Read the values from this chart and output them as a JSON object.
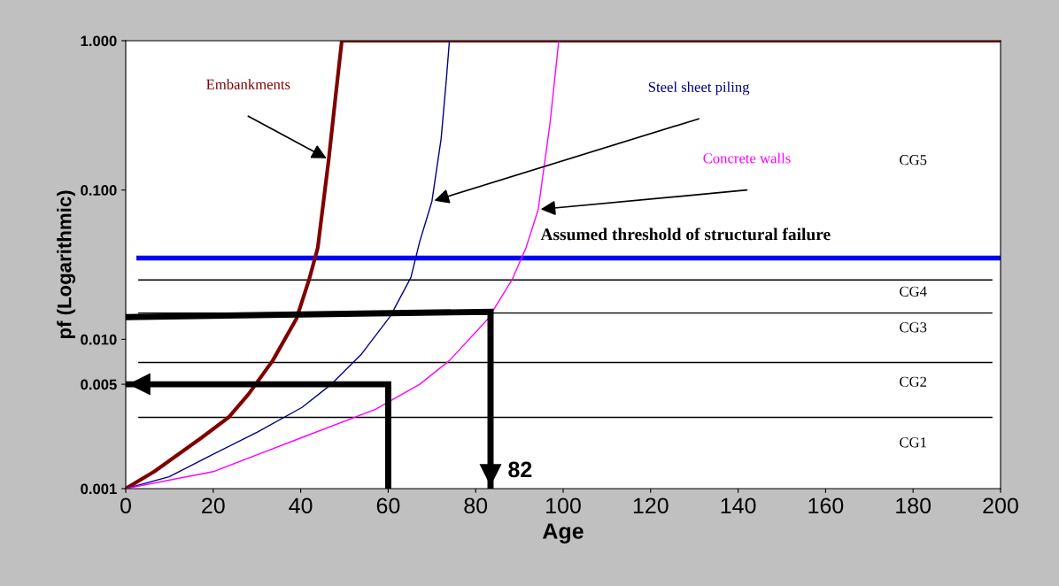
{
  "chart_data": {
    "type": "line",
    "xlabel": "Age",
    "ylabel": "pf (Logarithmic)",
    "log": "y",
    "xlim": [
      0,
      200
    ],
    "xticks": [
      0,
      20,
      40,
      60,
      80,
      100,
      120,
      140,
      160,
      180,
      200
    ],
    "ylim": [
      0.001,
      1.0
    ],
    "yticks": [
      {
        "value": 0.001,
        "label": "0.001"
      },
      {
        "value": 0.005,
        "label": "0.005"
      },
      {
        "value": 0.01,
        "label": "0.010"
      },
      {
        "value": 0.1,
        "label": "0.100"
      },
      {
        "value": 1.0,
        "label": "1.000"
      }
    ],
    "grid": false,
    "legend": false,
    "marker": "none",
    "line_style": "solid",
    "series": [
      {
        "name": "Embankments",
        "color": "#800000",
        "x": [
          0,
          6.5,
          17.4,
          23.5,
          28.1,
          33.6,
          39,
          41.9,
          43.9,
          46.4,
          48,
          49.4,
          200
        ],
        "values": [
          0.001,
          0.0013,
          0.0022,
          0.003,
          0.0043,
          0.0072,
          0.0137,
          0.025,
          0.041,
          0.16,
          0.43,
          1.0,
          1.0
        ]
      },
      {
        "name": "Steel sheet piling",
        "color": "#000080",
        "x": [
          0,
          9.9,
          20,
          30.2,
          40.3,
          47,
          53.8,
          60.5,
          65.2,
          67.2,
          70,
          72.1,
          73.3,
          74
        ],
        "values": [
          0.001,
          0.0012,
          0.0017,
          0.0024,
          0.0035,
          0.005,
          0.0079,
          0.0143,
          0.026,
          0.045,
          0.084,
          0.22,
          0.55,
          1.0
        ]
      },
      {
        "name": "Concrete walls",
        "color": "#ff00ff",
        "x": [
          0,
          20,
          40.3,
          57.1,
          67.2,
          74,
          82.8,
          88.3,
          91.5,
          94.3,
          97,
          99
        ],
        "values": [
          0.001,
          0.0013,
          0.0022,
          0.0034,
          0.005,
          0.0072,
          0.0137,
          0.025,
          0.041,
          0.074,
          0.28,
          1.0
        ]
      },
      {
        "color": "#000000",
        "x": [
          60,
          60,
          0
        ],
        "values": [
          0.001,
          0.005,
          0.005
        ]
      },
      {
        "color": "#000000",
        "x": [
          0,
          83.4,
          83.4
        ],
        "values": [
          0.0141,
          0.0153,
          0.001
        ]
      }
    ],
    "ref_lines": [
      {
        "axis": "y",
        "value": 0.035,
        "label": "Assumed threshold of structural failure",
        "color": "#0000ff"
      },
      {
        "axis": "y",
        "value": 0.025,
        "color": "#000000"
      },
      {
        "axis": "y",
        "value": 0.015,
        "color": "#000000"
      },
      {
        "axis": "y",
        "value": 0.007,
        "color": "#000000"
      },
      {
        "axis": "y",
        "value": 0.003,
        "color": "#000000"
      }
    ],
    "annotations": [
      "CG5",
      "CG4",
      "CG3",
      "CG2",
      "CG1",
      {
        "text": "82",
        "x": 83.4,
        "y": 0.001
      }
    ]
  }
}
